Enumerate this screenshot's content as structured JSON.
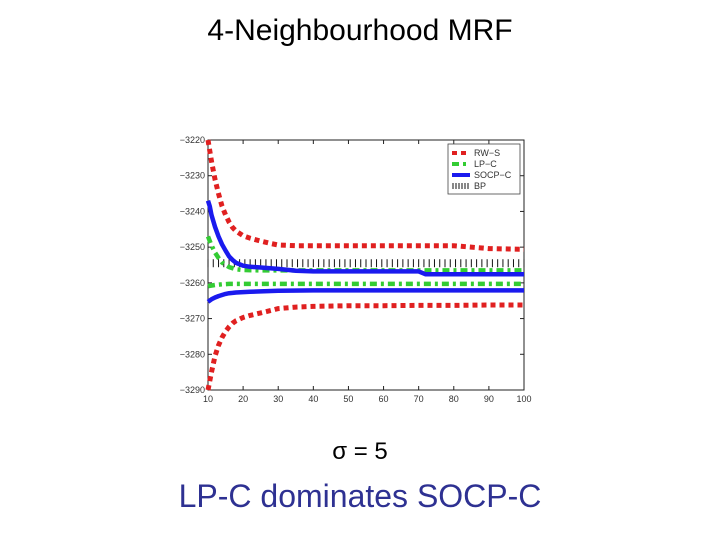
{
  "slide": {
    "title": "4-Neighbourhood MRF",
    "sigma_label": "σ = 5",
    "caption": "LP-C dominates SOCP-C"
  },
  "chart_data": {
    "type": "line",
    "title": "",
    "xlabel": "",
    "ylabel": "",
    "xlim": [
      10,
      100
    ],
    "ylim": [
      -3290,
      -3220
    ],
    "x_ticks": [
      10,
      20,
      30,
      40,
      50,
      60,
      70,
      80,
      90,
      100
    ],
    "y_ticks": [
      -3220,
      -3230,
      -3240,
      -3250,
      -3260,
      -3270,
      -3280,
      -3290
    ],
    "x_tick_labels": [
      "10",
      "20",
      "30",
      "40",
      "50",
      "60",
      "70",
      "80",
      "90",
      "100"
    ],
    "y_tick_labels": [
      "−3220",
      "−3230",
      "−3240",
      "−3250",
      "−3260",
      "−3270",
      "−3280",
      "−3290"
    ],
    "legend_position": "top-right",
    "grid": false,
    "series": [
      {
        "name": "RW−S",
        "color": "#e02020",
        "style": "dotted-thick",
        "lines": [
          {
            "x": [
              10,
              11,
              12,
              13,
              14,
              15,
              16,
              17,
              18,
              20,
              22,
              25,
              28,
              30,
              35,
              40,
              50,
              60,
              70,
              80,
              90,
              100
            ],
            "y": [
              -3220,
              -3226,
              -3231,
              -3235,
              -3238.5,
              -3241,
              -3243,
              -3244.5,
              -3245.5,
              -3246.8,
              -3247.5,
              -3248.3,
              -3249,
              -3249.4,
              -3249.6,
              -3249.6,
              -3249.6,
              -3249.6,
              -3249.6,
              -3249.6,
              -3250.4,
              -3250.6
            ]
          },
          {
            "x": [
              10,
              11,
              12,
              13,
              14,
              15,
              16,
              17,
              18,
              20,
              22,
              25,
              28,
              30,
              35,
              40,
              50,
              60,
              70,
              80,
              90,
              100
            ],
            "y": [
              -3290,
              -3285,
              -3280.5,
              -3277.5,
              -3275.3,
              -3273.6,
              -3272.3,
              -3271.3,
              -3270.6,
              -3269.7,
              -3269.1,
              -3268.4,
              -3267.7,
              -3267.2,
              -3266.8,
              -3266.6,
              -3266.4,
              -3266.4,
              -3266.3,
              -3266.3,
              -3266.2,
              -3266.2
            ]
          }
        ]
      },
      {
        "name": "LP−C",
        "color": "#33cc33",
        "style": "dash-dot",
        "lines": [
          {
            "x": [
              10,
              11,
              12,
              13,
              14,
              15,
              16,
              17,
              18,
              20,
              25,
              30,
              40,
              50,
              60,
              70,
              80,
              90,
              100
            ],
            "y": [
              -3247,
              -3249.5,
              -3251.5,
              -3253,
              -3254.3,
              -3255,
              -3255.6,
              -3255.9,
              -3256.2,
              -3256.4,
              -3256.5,
              -3256.5,
              -3256.5,
              -3256.5,
              -3256.5,
              -3256.5,
              -3256.5,
              -3256.5,
              -3256.5
            ]
          },
          {
            "x": [
              10,
              12,
              14,
              16,
              18,
              20,
              25,
              30,
              40,
              50,
              60,
              70,
              80,
              90,
              100
            ],
            "y": [
              -3260.9,
              -3260.6,
              -3260.4,
              -3260.3,
              -3260.3,
              -3260.3,
              -3260.3,
              -3260.3,
              -3260.3,
              -3260.3,
              -3260.3,
              -3260.3,
              -3260.3,
              -3260.3,
              -3260.3
            ]
          }
        ]
      },
      {
        "name": "SOCP−C",
        "color": "#1a1aee",
        "style": "solid-thick",
        "lines": [
          {
            "x": [
              10,
              10.5,
              11,
              12,
              13,
              14,
              15,
              16,
              17,
              18,
              20,
              22,
              25,
              30,
              35,
              40,
              50,
              60,
              70,
              72,
              80,
              90,
              100
            ],
            "y": [
              -3237,
              -3238.6,
              -3241,
              -3244.3,
              -3247,
              -3249.2,
              -3251,
              -3252.6,
              -3253.6,
              -3254.4,
              -3255.2,
              -3255.5,
              -3255.7,
              -3256.1,
              -3256.6,
              -3256.8,
              -3256.8,
              -3256.8,
              -3256.8,
              -3257.6,
              -3257.6,
              -3257.6,
              -3257.6
            ]
          },
          {
            "x": [
              10,
              11,
              12,
              13,
              14,
              15,
              16,
              17,
              18,
              20,
              22,
              25,
              30,
              40,
              50,
              60,
              70,
              80,
              90,
              100
            ],
            "y": [
              -3265.3,
              -3264.6,
              -3264.1,
              -3263.7,
              -3263.4,
              -3263.1,
              -3262.9,
              -3262.8,
              -3262.7,
              -3262.6,
              -3262.5,
              -3262.4,
              -3262.2,
              -3262.1,
              -3262.1,
              -3262.1,
              -3262.1,
              -3262.1,
              -3262.1,
              -3262.1
            ]
          }
        ]
      },
      {
        "name": "BP",
        "color": "#111111",
        "style": "dashed-thin",
        "lines": [
          {
            "x": [
              10,
              100
            ],
            "y": [
              -3254.5,
              -3254.5
            ]
          }
        ]
      }
    ]
  }
}
